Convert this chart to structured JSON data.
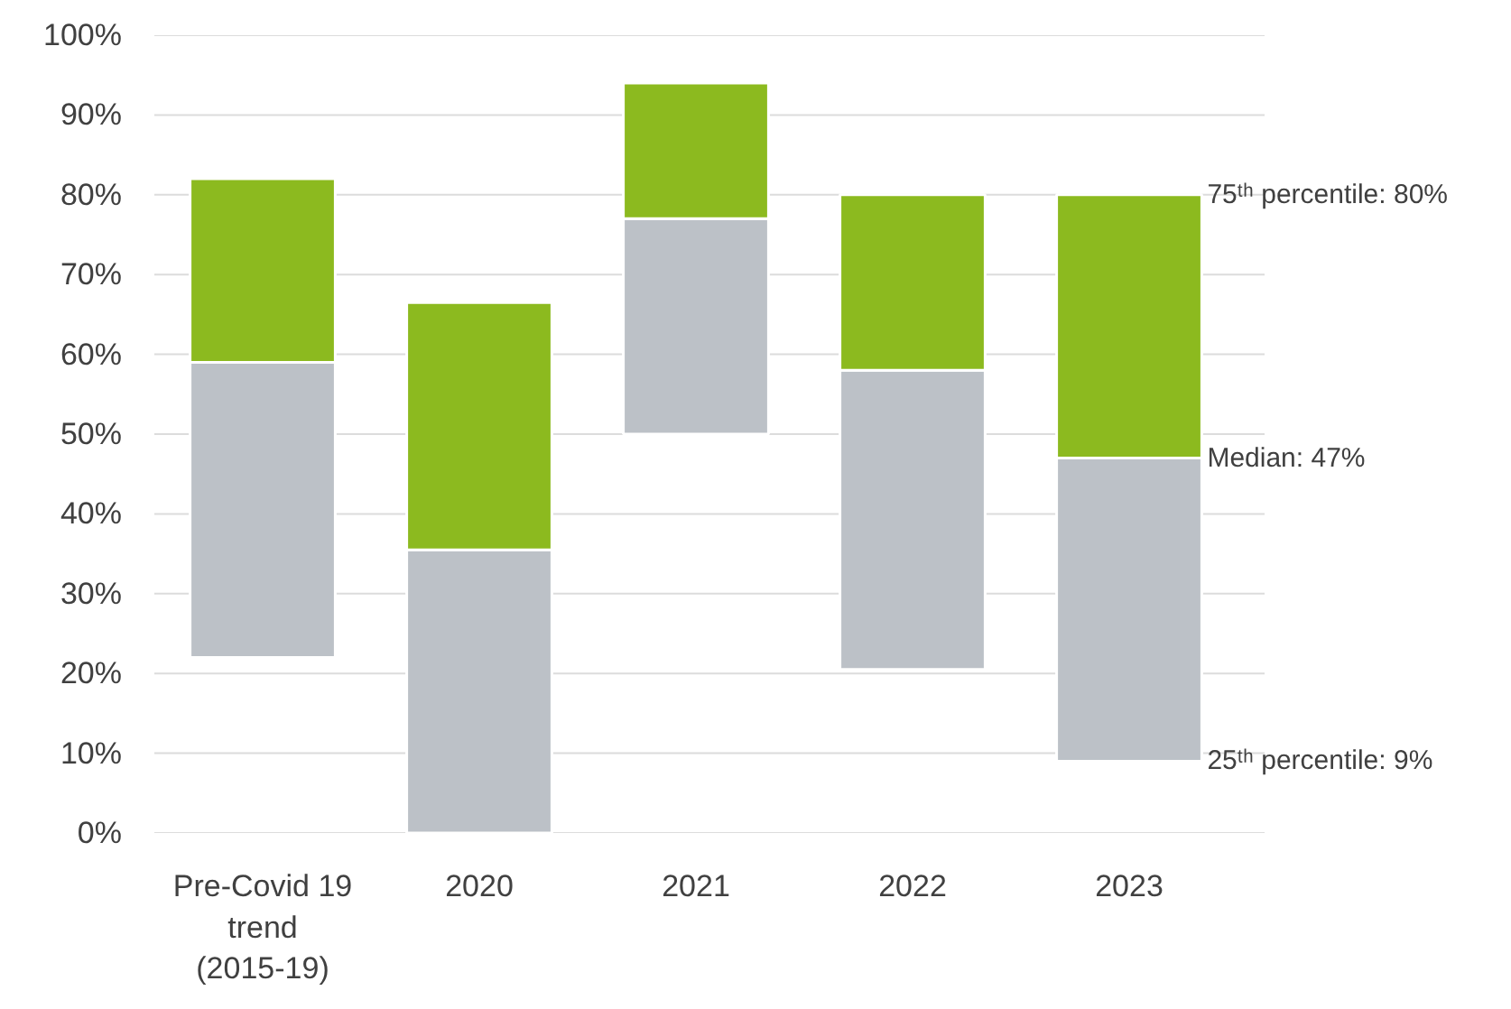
{
  "chart_data": {
    "type": "bar",
    "categories": [
      "Pre-Covid 19 trend (2015-19)",
      "2020",
      "2021",
      "2022",
      "2023"
    ],
    "series": [
      {
        "color": "#bcc1c7",
        "base": [
          22,
          0,
          50,
          20.5,
          9
        ],
        "values": [
          37,
          35.5,
          27,
          37.5,
          38
        ]
      },
      {
        "color": "#8cba1f",
        "base": [
          59,
          35.5,
          77,
          58,
          47
        ],
        "values": [
          23,
          31,
          17,
          22,
          33
        ]
      }
    ],
    "ylim": [
      0,
      100
    ],
    "yticks": [
      {
        "value": 0,
        "label": "0%"
      },
      {
        "value": 10,
        "label": "10%"
      },
      {
        "value": 20,
        "label": "20%"
      },
      {
        "value": 30,
        "label": "30%"
      },
      {
        "value": 40,
        "label": "40%"
      },
      {
        "value": 50,
        "label": "50%"
      },
      {
        "value": 60,
        "label": "60%"
      },
      {
        "value": 70,
        "label": "70%"
      },
      {
        "value": 80,
        "label": "80%"
      },
      {
        "value": 90,
        "label": "90%"
      },
      {
        "value": 100,
        "label": "100%"
      }
    ],
    "grid": "y",
    "annotations": [
      {
        "text": "75ᵗʰ percentile: 80%",
        "x": "2023",
        "y": 80
      },
      {
        "text": "Median: 47%",
        "x": "2023",
        "y": 47
      },
      {
        "text": "25ᵗʰ percentile: 9%",
        "x": "2023",
        "y": 9
      }
    ]
  }
}
